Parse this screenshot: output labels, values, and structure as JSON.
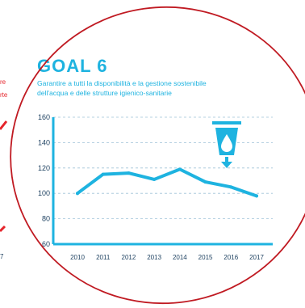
{
  "goal": {
    "title": "GOAL 6",
    "subtitle_line1": "Garantire a tutti la disponibilità e la gestione sostenibile",
    "subtitle_line2": "dell'acqua e delle strutture igienico-sanitarie"
  },
  "left_panel": {
    "fragment_label_1": "re",
    "fragment_label_2": "rte",
    "fragment_year": "7"
  },
  "colors": {
    "accent": "#1eb3e0",
    "axis_text": "#1a3e5e",
    "grid": "#9fc2d8",
    "circle": "#c01a22",
    "left_panel_accent": "#e5242b"
  },
  "icons": [
    "water-drop-icon",
    "down-arrow-icon"
  ],
  "chart_data": {
    "type": "line",
    "categories": [
      "2010",
      "2011",
      "2012",
      "2013",
      "2014",
      "2015",
      "2016",
      "2017"
    ],
    "series": [
      {
        "values": [
          100,
          115,
          116,
          111,
          119,
          109,
          105,
          98
        ]
      }
    ],
    "yticks": [
      "160",
      "140",
      "120",
      "100",
      "80",
      "60"
    ],
    "ylim": [
      60,
      160
    ],
    "grid": true,
    "title": "",
    "xlabel": "",
    "ylabel": ""
  }
}
